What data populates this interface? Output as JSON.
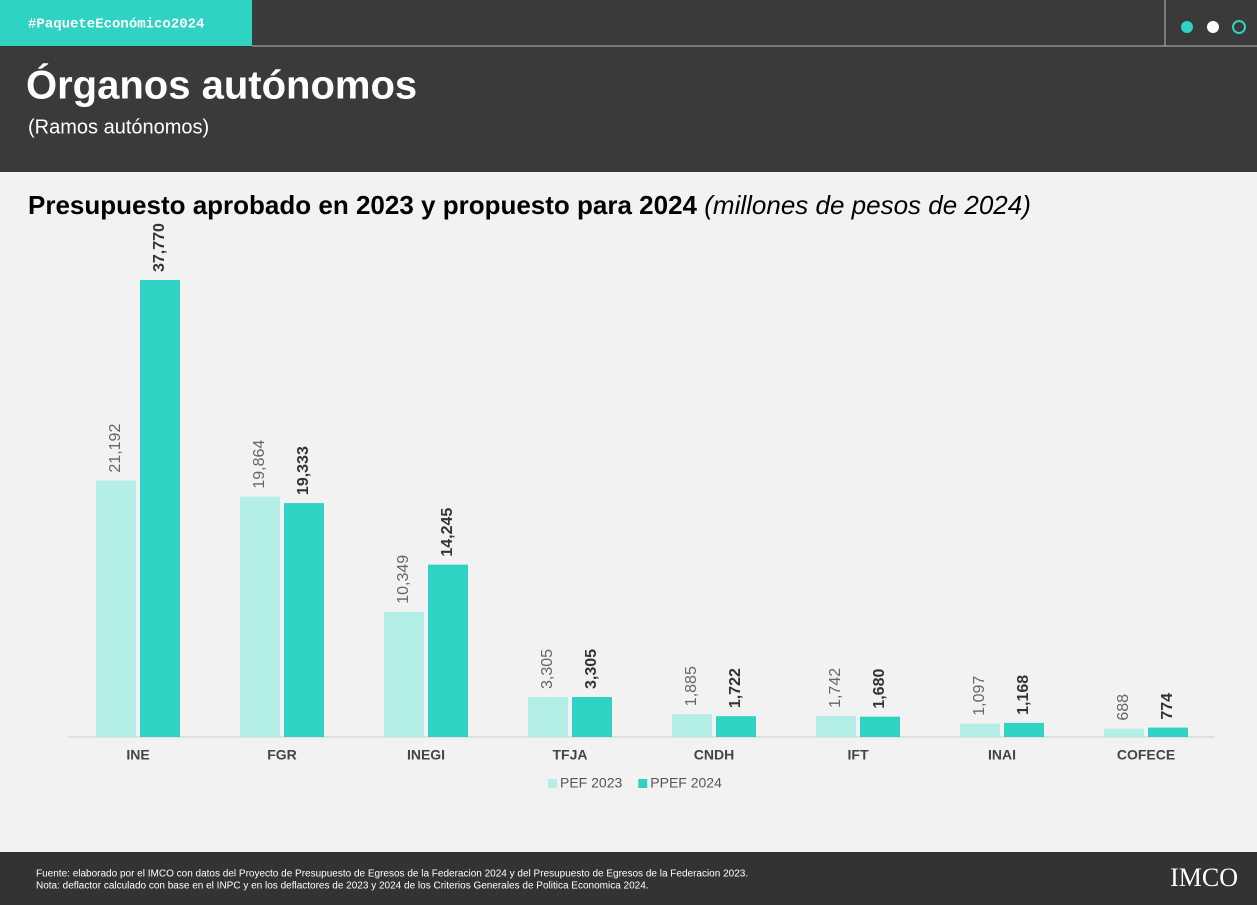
{
  "header": {
    "hashtag": "#PaqueteEconómico2024",
    "title": "Órganos autónomos",
    "subtitle": "(Ramos autónomos)"
  },
  "chart_data": {
    "type": "bar",
    "title": "Presupuesto aprobado en 2023 y propuesto para 2024",
    "title_note": "(millones de pesos de 2024)",
    "categories": [
      "INE",
      "FGR",
      "INEGI",
      "TFJA",
      "CNDH",
      "IFT",
      "INAI",
      "COFECE"
    ],
    "series": [
      {
        "name": "PEF 2023",
        "color": "#b3efe6",
        "values": [
          21192,
          19864,
          10349,
          3305,
          1885,
          1742,
          1097,
          688
        ],
        "value_labels": [
          "21,192",
          "19,864",
          "10,349",
          "3,305",
          "1,885",
          "1,742",
          "1,097",
          "688"
        ]
      },
      {
        "name": "PPEF 2024",
        "color": "#2fd3c3",
        "values": [
          37770,
          19333,
          14245,
          3305,
          1722,
          1680,
          1168,
          774
        ],
        "value_labels": [
          "37,770",
          "19,333",
          "14,245",
          "3,305",
          "1,722",
          "1,680",
          "1,168",
          "774"
        ]
      }
    ],
    "legend": "bottom"
  },
  "footer": {
    "source": "Fuente: elaborado por el IMCO con datos del Proyecto de Presupuesto de Egresos de la Federacion 2024 y del Presupuesto de Egresos de la Federacion 2023.",
    "note": "Nota: deflactor calculado con base en el INPC y en los deflactores de 2023 y 2024 de los Criterios Generales de Politica Economica 2024.",
    "logo": "IMCO"
  }
}
